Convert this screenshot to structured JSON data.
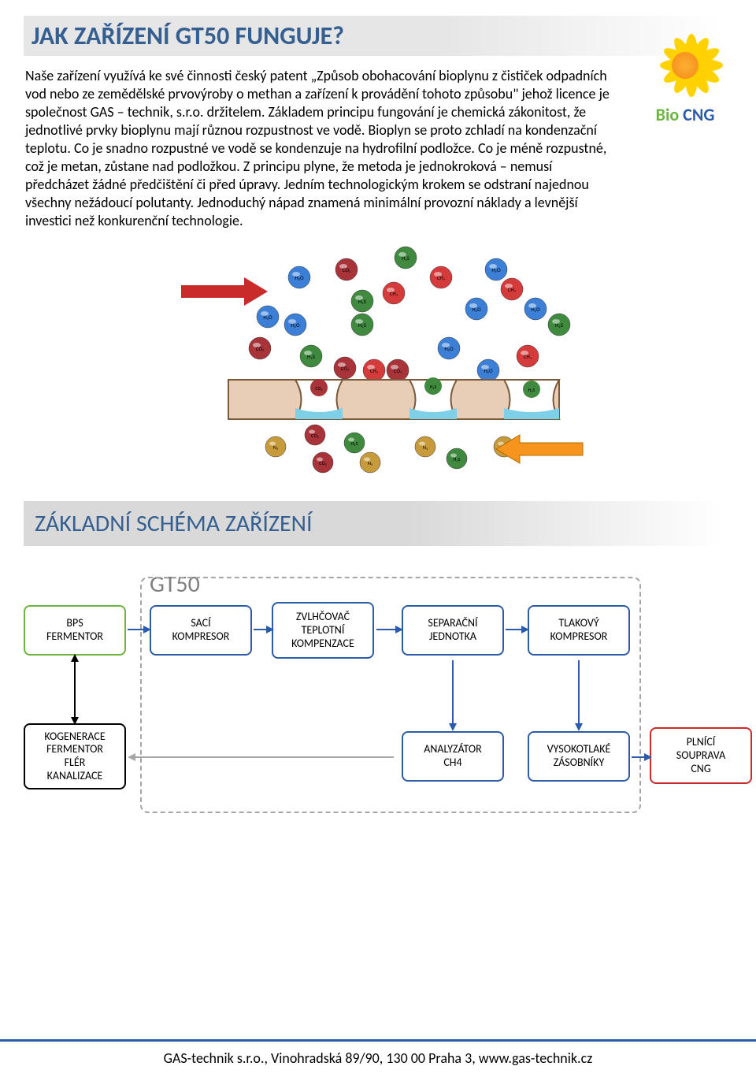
{
  "page": {
    "title": "JAK ZAŘÍZENÍ GT50 FUNGUJE?",
    "body": "Naše zařízení využívá ke své činnosti český patent „Způsob obohacování bioplynu z čističek odpadních vod nebo ze zemědělské prvovýroby o methan a zařízení k provádění tohoto způsobu\" jehož licence je společnost GAS – technik, s.r.o. držitelem. Základem principu fungování je chemická zákonitost, že jednotlivé prvky bioplynu mají různou rozpustnost ve vodě. Bioplyn se proto zchladí na kondenzační teplotu. Co je snadno rozpustné ve vodě se kondenzuje na hydrofilní podložce. Co je méně rozpustné, což je metan, zůstane nad podložkou. Z principu plyne, že metoda je jednokroková – nemusí předcházet žádné předčištění či před úpravy. Jedním technologickým krokem se odstraní najednou všechny nežádoucí polutanty. Jednoduchý nápad znamená minimální provozní náklady a levnější investici než konkurenční technologie.",
    "section2": "ZÁKLADNÍ SCHÉMA ZAŘÍZENÍ",
    "gt50": "GT50",
    "footer": "GAS-technik s.r.o., Vinohradská 89/90, 130 00  Praha 3, www.gas-technik.cz"
  },
  "logo": {
    "part_a": "Bio",
    "part_b": " CNG"
  },
  "membrane": {
    "molecules_top": [
      {
        "t": "H₂O",
        "c": "#3b7fd6"
      },
      {
        "t": "CO₂",
        "c": "#a8343a"
      },
      {
        "t": "H₂S",
        "c": "#3f8a3f"
      },
      {
        "t": "CH₄",
        "c": "#d63b3b"
      },
      {
        "t": "H₂O",
        "c": "#3b7fd6"
      },
      {
        "t": "H₂O",
        "c": "#3b7fd6"
      },
      {
        "t": "H₂O",
        "c": "#3b7fd6"
      },
      {
        "t": "H₂S",
        "c": "#3f8a3f"
      },
      {
        "t": "CH₄",
        "c": "#d63b3b"
      },
      {
        "t": "H₂S",
        "c": "#3f8a3f"
      },
      {
        "t": "H₂O",
        "c": "#3b7fd6"
      },
      {
        "t": "CH₄",
        "c": "#d63b3b"
      },
      {
        "t": "H₂O",
        "c": "#3b7fd6"
      },
      {
        "t": "H₂S",
        "c": "#3f8a3f"
      },
      {
        "t": "CO₂",
        "c": "#a8343a"
      },
      {
        "t": "H₂S",
        "c": "#3f8a3f"
      },
      {
        "t": "CO₂",
        "c": "#a8343a"
      },
      {
        "t": "CH₄",
        "c": "#d63b3b"
      },
      {
        "t": "CO₂",
        "c": "#a8343a"
      },
      {
        "t": "H₂O",
        "c": "#3b7fd6"
      },
      {
        "t": "H₂O",
        "c": "#3b7fd6"
      },
      {
        "t": "CH₄",
        "c": "#d63b3b"
      }
    ],
    "molecules_bottom": [
      {
        "t": "N₂",
        "c": "#c79a3b"
      },
      {
        "t": "CO₂",
        "c": "#a8343a"
      },
      {
        "t": "H₂S",
        "c": "#3f8a3f"
      },
      {
        "t": "CO₂",
        "c": "#a8343a"
      },
      {
        "t": "N₂",
        "c": "#c79a3b"
      },
      {
        "t": "N₂",
        "c": "#c79a3b"
      },
      {
        "t": "H₂S",
        "c": "#3f8a3f"
      },
      {
        "t": "N₂",
        "c": "#c79a3b"
      }
    ],
    "membrane_color": "#e8ceb6",
    "membrane_border": "#7a5a3a",
    "water_color": "#7ecfe8",
    "arrow_in_color": "#c92a2a",
    "arrow_out_color": "#f7941e"
  },
  "schema": {
    "group_label": "GT50",
    "colors": {
      "green": "#6bb53f",
      "blue": "#2b5caa",
      "red": "#c92a2a",
      "grey": "#a6a6a6",
      "black": "#000000"
    },
    "boxes": {
      "bps": {
        "text": "BPS\nFERMENTOR",
        "border": "#6bb53f"
      },
      "saci": {
        "text": "SACÍ\nKOMPRESOR",
        "border": "#2b5caa"
      },
      "zvlh": {
        "text": "ZVLHČOVAČ\nTEPLOTNÍ\nKOMPENZACE",
        "border": "#2b5caa"
      },
      "sep": {
        "text": "SEPARAČNÍ\nJEDNOTKA",
        "border": "#2b5caa"
      },
      "tlak": {
        "text": "TLAKOVÝ\nKOMPRESOR",
        "border": "#2b5caa"
      },
      "kogen": {
        "text": "KOGENERACE\nFERMENTOR\nFLÉR\nKANALIZACE",
        "border": "#000000"
      },
      "anal": {
        "text": "ANALYZÁTOR\nCH4",
        "border": "#2b5caa"
      },
      "vys": {
        "text": "VYSOKOTLAKÉ\nZÁSOBNÍKY",
        "border": "#2b5caa"
      },
      "plnici": {
        "text": "PLNÍCÍ\nSOUPRAVA\nCNG",
        "border": "#c92a2a"
      }
    }
  }
}
